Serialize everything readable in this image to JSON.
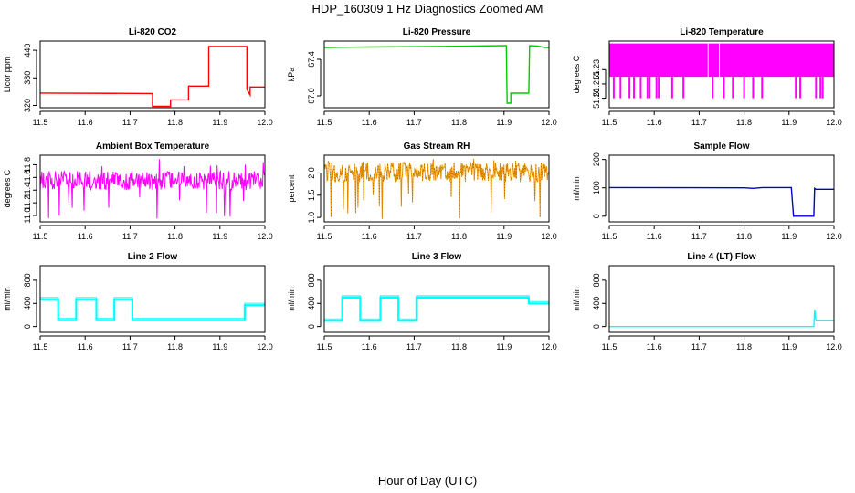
{
  "figure": {
    "title": "HDP_160309  1 Hz Diagnostics Zoomed AM",
    "xlabel": "Hour of Day (UTC)"
  },
  "chart_data": [
    {
      "type": "line",
      "title": "Li-820 CO2",
      "ylabel": "Licor ppm",
      "color": "#ff0000",
      "xlim": [
        11.5,
        12.0
      ],
      "ylim": [
        315,
        460
      ],
      "xticks": [
        11.5,
        11.6,
        11.7,
        11.8,
        11.9,
        12.0
      ],
      "xtick_labels": [
        "11.5",
        "11.6",
        "11.7",
        "11.8",
        "11.9",
        "12.0"
      ],
      "yticks": [
        320,
        380,
        440
      ],
      "ytick_labels": [
        "320",
        "380",
        "440"
      ],
      "series": [
        {
          "style": "steps",
          "points": [
            [
              11.5,
              347
            ],
            [
              11.75,
              346
            ],
            [
              11.75,
              318
            ],
            [
              11.79,
              318
            ],
            [
              11.79,
              332
            ],
            [
              11.83,
              332
            ],
            [
              11.83,
              362
            ],
            [
              11.875,
              362
            ],
            [
              11.875,
              448
            ],
            [
              11.96,
              448
            ],
            [
              11.96,
              355
            ],
            [
              11.967,
              343
            ],
            [
              11.967,
              360
            ],
            [
              12.0,
              360
            ]
          ]
        }
      ]
    },
    {
      "type": "line",
      "title": "Li-820 Pressure",
      "ylabel": "kPa",
      "color": "#00cc00",
      "xlim": [
        11.5,
        12.0
      ],
      "ylim": [
        66.87,
        67.6
      ],
      "xticks": [
        11.5,
        11.6,
        11.7,
        11.8,
        11.9,
        12.0
      ],
      "xtick_labels": [
        "11.5",
        "11.6",
        "11.7",
        "11.8",
        "11.9",
        "12.0"
      ],
      "yticks": [
        67.0,
        67.4
      ],
      "ytick_labels": [
        "67.0",
        "67.4"
      ],
      "series": [
        {
          "style": "steps",
          "points": [
            [
              11.5,
              67.53
            ],
            [
              11.6,
              67.535
            ],
            [
              11.75,
              67.54
            ],
            [
              11.9,
              67.55
            ],
            [
              11.905,
              67.55
            ],
            [
              11.907,
              66.92
            ],
            [
              11.915,
              66.92
            ],
            [
              11.915,
              67.03
            ],
            [
              11.955,
              67.03
            ],
            [
              11.957,
              67.55
            ],
            [
              11.975,
              67.545
            ],
            [
              11.99,
              67.53
            ],
            [
              12.0,
              67.53
            ]
          ]
        }
      ]
    },
    {
      "type": "line",
      "title": "Li-820 Temperature",
      "ylabel": "degrees C",
      "color": "#ff00ff",
      "xlim": [
        11.5,
        12.0
      ],
      "ylim": [
        51.19,
        51.26
      ],
      "xticks": [
        11.5,
        11.6,
        11.7,
        11.8,
        11.9,
        12.0
      ],
      "xtick_labels": [
        "11.5",
        "11.6",
        "11.7",
        "11.8",
        "11.9",
        "12.0"
      ],
      "yticks": [
        51.2,
        51.215,
        51.23
      ],
      "ytick_labels": [
        "51.20",
        "51.215",
        "51.23"
      ],
      "series": [
        {
          "style": "band",
          "low": 51.2225,
          "high": 51.2575,
          "gaps": [
            11.72,
            11.745
          ],
          "dips": [
            11.51,
            11.525,
            11.545,
            11.555,
            11.57,
            11.585,
            11.59,
            11.605,
            11.61,
            11.64,
            11.665,
            11.73,
            11.755,
            11.775,
            11.8,
            11.82,
            11.84,
            11.915,
            11.925,
            11.96,
            11.97,
            11.975
          ],
          "dip_to": 51.2
        }
      ]
    },
    {
      "type": "line",
      "title": "Ambient Box Temperature",
      "ylabel": "degrees C",
      "color": "#ff00ff",
      "xlim": [
        11.5,
        12.0
      ],
      "ylim": [
        10.9,
        11.95
      ],
      "xticks": [
        11.5,
        11.6,
        11.7,
        11.8,
        11.9,
        12.0
      ],
      "xtick_labels": [
        "11.5",
        "11.6",
        "11.7",
        "11.8",
        "11.9",
        "12.0"
      ],
      "yticks": [
        11.0,
        11.2,
        11.4,
        11.6,
        11.8
      ],
      "ytick_labels": [
        "11.0",
        "11.2",
        "11.4",
        "11.6",
        "11.8"
      ],
      "series": [
        {
          "style": "noise",
          "center": 11.55,
          "amp": 0.15,
          "spike_lo": 10.95,
          "spike_hi": 11.9,
          "n": 400
        }
      ]
    },
    {
      "type": "line",
      "title": "Gas Stream RH",
      "ylabel": "percent",
      "color": "#ff9900",
      "xlim": [
        11.5,
        12.0
      ],
      "ylim": [
        0.9,
        2.4
      ],
      "xticks": [
        11.5,
        11.6,
        11.7,
        11.8,
        11.9,
        12.0
      ],
      "xtick_labels": [
        "11.5",
        "11.6",
        "11.7",
        "11.8",
        "11.9",
        "12.0"
      ],
      "yticks": [
        1.0,
        1.5,
        2.0
      ],
      "ytick_labels": [
        "1.0",
        "1.5",
        "2.0"
      ],
      "series": [
        {
          "style": "noise",
          "center": 2.02,
          "amp": 0.22,
          "spike_lo": 0.95,
          "spike_hi": 2.35,
          "n": 400
        }
      ]
    },
    {
      "type": "line",
      "title": "Sample Flow",
      "ylabel": "ml/min",
      "color": "#0000cc",
      "xlim": [
        11.5,
        12.0
      ],
      "ylim": [
        -20,
        215
      ],
      "xticks": [
        11.5,
        11.6,
        11.7,
        11.8,
        11.9,
        12.0
      ],
      "xtick_labels": [
        "11.5",
        "11.6",
        "11.7",
        "11.8",
        "11.9",
        "12.0"
      ],
      "yticks": [
        0,
        100,
        200
      ],
      "ytick_labels": [
        "0",
        "100",
        "200"
      ],
      "series": [
        {
          "style": "steps",
          "points": [
            [
              11.5,
              101
            ],
            [
              11.8,
              100
            ],
            [
              11.82,
              98
            ],
            [
              11.84,
              101
            ],
            [
              11.905,
              101
            ],
            [
              11.91,
              0
            ],
            [
              11.955,
              0
            ],
            [
              11.957,
              98
            ],
            [
              11.96,
              95
            ],
            [
              11.98,
              95
            ],
            [
              12.0,
              95
            ]
          ]
        }
      ]
    },
    {
      "type": "line",
      "title": "Line 2 Flow",
      "ylabel": "ml/min",
      "color": "#00ffff",
      "xlim": [
        11.5,
        12.0
      ],
      "ylim": [
        -100,
        1050
      ],
      "xticks": [
        11.5,
        11.6,
        11.7,
        11.8,
        11.9,
        12.0
      ],
      "xtick_labels": [
        "11.5",
        "11.6",
        "11.7",
        "11.8",
        "11.9",
        "12.0"
      ],
      "yticks": [
        0,
        200,
        400,
        600,
        800
      ],
      "ytick_labels": [
        "0",
        "400",
        "800"
      ],
      "yticks_shown": [
        0,
        400,
        800
      ],
      "series": [
        {
          "style": "steps",
          "thick": true,
          "points": [
            [
              11.5,
              470
            ],
            [
              11.54,
              470
            ],
            [
              11.54,
              110
            ],
            [
              11.58,
              110
            ],
            [
              11.58,
              470
            ],
            [
              11.625,
              470
            ],
            [
              11.625,
              110
            ],
            [
              11.665,
              110
            ],
            [
              11.665,
              470
            ],
            [
              11.705,
              470
            ],
            [
              11.705,
              110
            ],
            [
              11.955,
              110
            ],
            [
              11.955,
              370
            ],
            [
              12.0,
              370
            ]
          ]
        }
      ]
    },
    {
      "type": "line",
      "title": "Line 3 Flow",
      "ylabel": "ml/min",
      "color": "#00ffff",
      "xlim": [
        11.5,
        12.0
      ],
      "ylim": [
        -100,
        1050
      ],
      "xticks": [
        11.5,
        11.6,
        11.7,
        11.8,
        11.9,
        12.0
      ],
      "xtick_labels": [
        "11.5",
        "11.6",
        "11.7",
        "11.8",
        "11.9",
        "12.0"
      ],
      "yticks_shown": [
        0,
        400,
        800
      ],
      "ytick_labels": [
        "0",
        "400",
        "800"
      ],
      "series": [
        {
          "style": "steps",
          "thick": true,
          "points": [
            [
              11.5,
              100
            ],
            [
              11.54,
              100
            ],
            [
              11.54,
              500
            ],
            [
              11.58,
              500
            ],
            [
              11.58,
              100
            ],
            [
              11.625,
              100
            ],
            [
              11.625,
              500
            ],
            [
              11.665,
              500
            ],
            [
              11.665,
              100
            ],
            [
              11.705,
              100
            ],
            [
              11.705,
              500
            ],
            [
              11.955,
              500
            ],
            [
              11.955,
              400
            ],
            [
              12.0,
              400
            ]
          ]
        }
      ]
    },
    {
      "type": "line",
      "title": "Line 4 (LT) Flow",
      "ylabel": "ml/min",
      "color": "#00ffff",
      "xlim": [
        11.5,
        12.0
      ],
      "ylim": [
        -100,
        1050
      ],
      "xticks": [
        11.5,
        11.6,
        11.7,
        11.8,
        11.9,
        12.0
      ],
      "xtick_labels": [
        "11.5",
        "11.6",
        "11.7",
        "11.8",
        "11.9",
        "12.0"
      ],
      "yticks_shown": [
        0,
        400,
        800
      ],
      "ytick_labels": [
        "0",
        "400",
        "800"
      ],
      "series": [
        {
          "style": "steps",
          "points": [
            [
              11.5,
              0
            ],
            [
              11.955,
              0
            ],
            [
              11.957,
              280
            ],
            [
              11.96,
              100
            ],
            [
              12.0,
              100
            ]
          ]
        }
      ]
    }
  ]
}
